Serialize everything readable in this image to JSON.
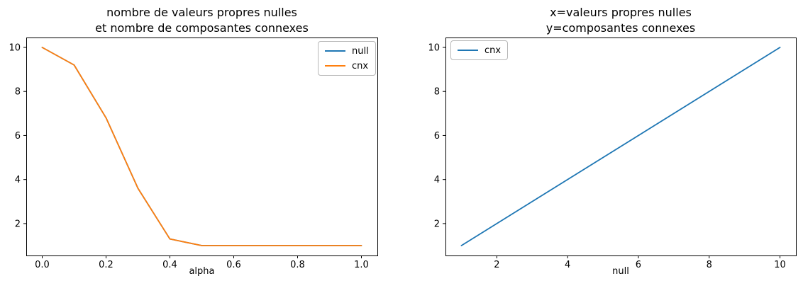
{
  "figure": {
    "background": "#ffffff"
  },
  "chart_data": [
    {
      "type": "line",
      "title": "nombre de valeurs propres nulles\net nombre de composantes connexes",
      "xlabel": "alpha",
      "ylabel": "",
      "x": [
        0.0,
        0.1,
        0.2,
        0.3,
        0.4,
        0.5,
        0.6,
        0.7,
        0.8,
        0.9,
        1.0
      ],
      "series": [
        {
          "name": "null",
          "color": "#1f77b4",
          "values": [
            10,
            9.2,
            6.8,
            3.6,
            1.3,
            1,
            1,
            1,
            1,
            1,
            1
          ]
        },
        {
          "name": "cnx",
          "color": "#ff7f0e",
          "values": [
            10,
            9.2,
            6.8,
            3.6,
            1.3,
            1,
            1,
            1,
            1,
            1,
            1
          ]
        }
      ],
      "xlim": [
        -0.05,
        1.05
      ],
      "ylim": [
        0.55,
        10.45
      ],
      "xticks": [
        0.0,
        0.2,
        0.4,
        0.6,
        0.8,
        1.0
      ],
      "xtick_labels": [
        "0.0",
        "0.2",
        "0.4",
        "0.6",
        "0.8",
        "1.0"
      ],
      "yticks": [
        2,
        4,
        6,
        8,
        10
      ],
      "ytick_labels": [
        "2",
        "4",
        "6",
        "8",
        "10"
      ],
      "grid": false,
      "legend_position": "top-right"
    },
    {
      "type": "line",
      "title": "x=valeurs propres nulles\ny=composantes connexes",
      "xlabel": "null",
      "ylabel": "",
      "x": [
        1,
        10
      ],
      "series": [
        {
          "name": "cnx",
          "color": "#1f77b4",
          "values": [
            1,
            10
          ]
        }
      ],
      "xlim": [
        0.55,
        10.45
      ],
      "ylim": [
        0.55,
        10.45
      ],
      "xticks": [
        2,
        4,
        6,
        8,
        10
      ],
      "xtick_labels": [
        "2",
        "4",
        "6",
        "8",
        "10"
      ],
      "yticks": [
        2,
        4,
        6,
        8,
        10
      ],
      "ytick_labels": [
        "2",
        "4",
        "6",
        "8",
        "10"
      ],
      "grid": false,
      "legend_position": "top-left"
    }
  ]
}
